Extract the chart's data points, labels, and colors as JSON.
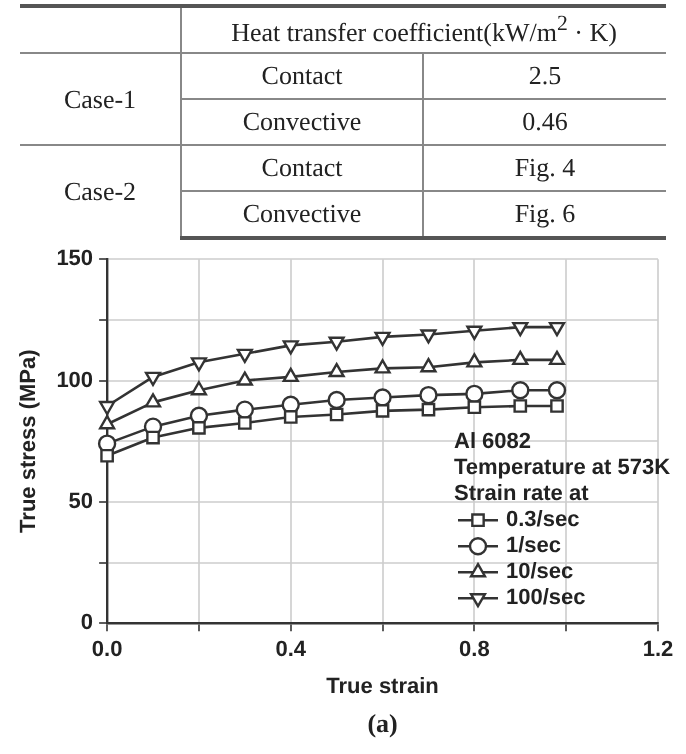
{
  "chart_data": [
    {
      "type": "other",
      "annotations": [
        "Heat transfer coefficient(kW/m$^{2}$ · K)",
        "Case-1",
        "Contact",
        "2.5",
        "Convective",
        "0.46",
        "Case-2",
        "Contact",
        "Fig. 4",
        "Convective",
        "Fig. 6"
      ]
    },
    {
      "type": "line",
      "xlabel": "True strain",
      "ylabel": "True stress (MPa)",
      "legend_title": "Al 6082\nTemperature at 573K\nStrain rate at",
      "legend": "bottom right",
      "grid": true,
      "line_style": "solid",
      "x": [
        0,
        0.1,
        0.2,
        0.3,
        0.4,
        0.5,
        0.6,
        0.7,
        0.8,
        0.9,
        0.98
      ],
      "xlim": [
        0,
        1.2
      ],
      "xticks": [
        {
          "value": 0,
          "label": "0.0"
        },
        {
          "value": 0.2,
          "label": null
        },
        {
          "value": 0.4,
          "label": "0.4"
        },
        {
          "value": 0.6,
          "label": null
        },
        {
          "value": 0.8,
          "label": "0.8"
        },
        {
          "value": 1.0,
          "label": null
        },
        {
          "value": 1.2,
          "label": "1.2"
        }
      ],
      "ylim": [
        0,
        150
      ],
      "yticks": [
        0,
        {
          "value": 25,
          "label": null
        },
        50,
        {
          "value": 75,
          "label": null
        },
        100,
        {
          "value": 125,
          "label": null
        },
        150
      ],
      "series": [
        {
          "name": "0.3/sec",
          "color": "#333333",
          "marker": "square",
          "values": [
            69,
            76.5,
            80.5,
            82.5,
            85,
            86,
            87.5,
            88,
            89,
            89.5,
            89.5
          ]
        },
        {
          "name": "1/sec",
          "color": "#333333",
          "marker": "circle",
          "values": [
            74,
            81,
            85.5,
            88,
            90,
            92,
            93,
            94,
            94.5,
            96,
            96
          ]
        },
        {
          "name": "10/sec",
          "color": "#333333",
          "marker": "triangle",
          "values": [
            82,
            91,
            96,
            100,
            101.5,
            103.5,
            105,
            105.5,
            107.5,
            108.5,
            108.5
          ]
        },
        {
          "name": "100/sec",
          "color": "#333333",
          "marker": "triangle_down",
          "values": [
            89.5,
            101.5,
            107.5,
            111,
            114.5,
            116,
            118,
            119,
            120.5,
            122,
            122
          ]
        }
      ],
      "annotations": [
        "(a)"
      ]
    }
  ]
}
